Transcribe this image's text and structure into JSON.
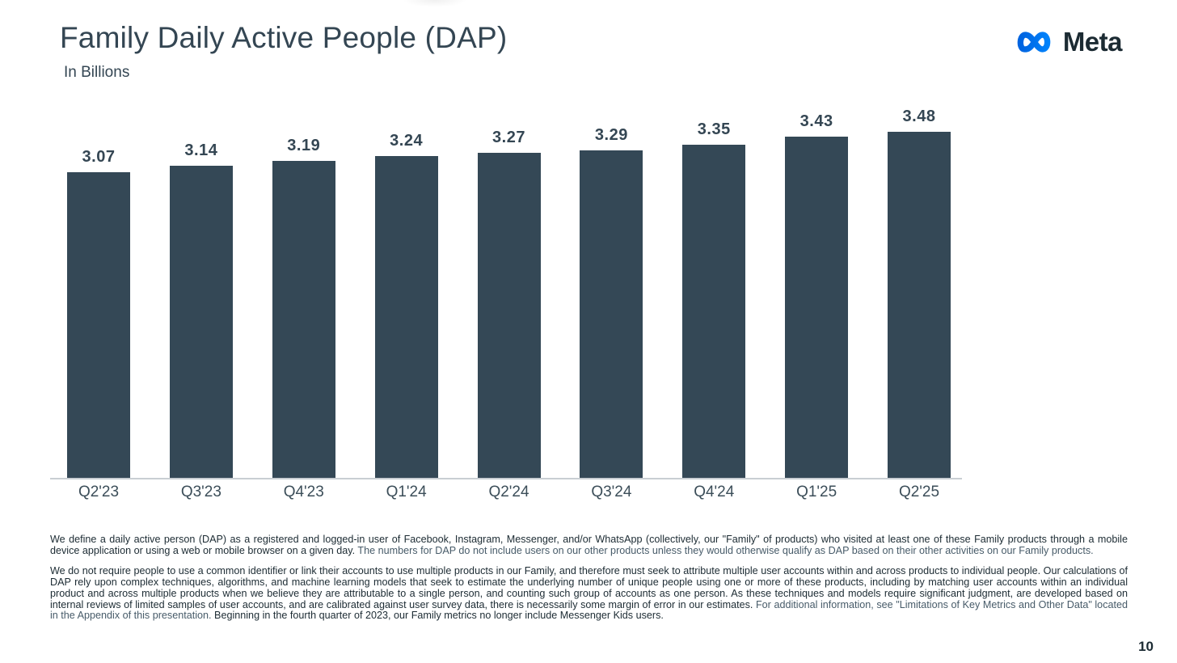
{
  "slide": {
    "title": "Family Daily Active People (DAP)",
    "subtitle": "In Billions",
    "brand": "Meta",
    "page_number": "10"
  },
  "chart_data": {
    "type": "bar",
    "title": "Family Daily Active People (DAP)",
    "subtitle": "In Billions",
    "xlabel": "",
    "ylabel": "In Billions",
    "categories": [
      "Q2'23",
      "Q3'23",
      "Q4'23",
      "Q1'24",
      "Q2'24",
      "Q3'24",
      "Q4'24",
      "Q1'25",
      "Q2'25"
    ],
    "values": [
      3.07,
      3.14,
      3.19,
      3.24,
      3.27,
      3.29,
      3.35,
      3.43,
      3.48
    ],
    "value_labels": [
      "3.07",
      "3.14",
      "3.19",
      "3.24",
      "3.27",
      "3.29",
      "3.35",
      "3.43",
      "3.48"
    ],
    "ylim": [
      0,
      3.48
    ],
    "grid": false,
    "legend": "none",
    "bar_color": "#344856"
  },
  "footnotes": {
    "paragraph1": [
      {
        "text": "We define a daily active person (DAP) as a registered and logged-in user of Facebook, Instagram, Messenger, and/or WhatsApp (collectively, our \"Family\" of products) who visited at least one of these Family products through a mobile device application or using a web or mobile browser on a given day. ",
        "muted": false
      },
      {
        "text": "The numbers for DAP do not include users on our other products unless they would otherwise qualify as DAP based on their other activities on our Family products.",
        "muted": true
      }
    ],
    "paragraph2": [
      {
        "text": "We do not require people to use a common identifier or link their accounts to use multiple products in our Family, and therefore must seek to attribute multiple user accounts within and across products to individual people. Our calculations of DAP rely upon complex techniques, algorithms, and machine learning models that seek to estimate the underlying number of unique people using one or more of these products, including by matching user accounts within an individual product and across multiple products when we believe they are attributable to a single person, and counting such group of accounts as one person. As these techniques and models require significant judgment, are developed based on internal reviews of limited samples of user accounts, and are calibrated against user survey data, there is necessarily some margin of error in our estimates. ",
        "muted": false
      },
      {
        "text": "For additional information, see \"Limitations of Key Metrics and Other Data\" located in the Appendix of this presentation. ",
        "muted": true
      },
      {
        "text": "Beginning in the fourth quarter of 2023, our Family metrics no longer include Messenger Kids users.",
        "muted": false
      }
    ]
  },
  "colors": {
    "bar": "#344856",
    "heading": "#344653",
    "axis_line": "#c9ced3",
    "text_dark": "#1c2b33",
    "text_muted": "#475b69",
    "logo_blue_start": "#0064e0",
    "logo_blue_end": "#0082fb"
  }
}
